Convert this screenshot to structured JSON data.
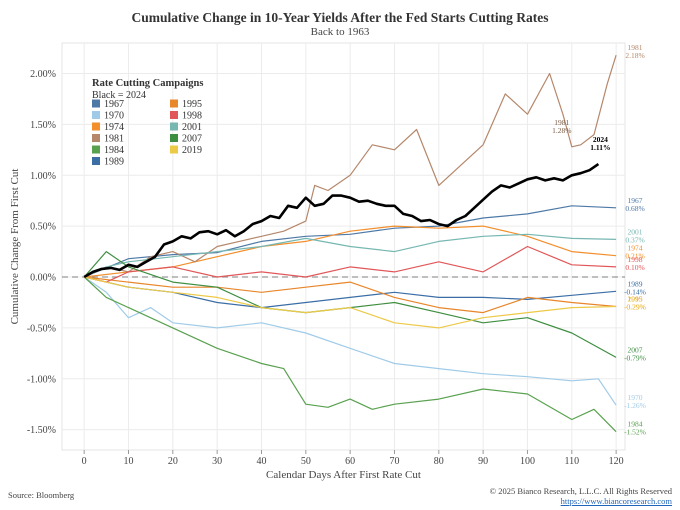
{
  "header": {
    "title": "Cumulative Change in 10-Year Yields After the Fed Starts Cutting Rates",
    "subtitle": "Back to 1963"
  },
  "footer": {
    "source": "Source: Bloomberg",
    "copyright": "© 2025 Bianco Research, L.L.C. All Rights Reserved",
    "url": "https://www.biancoresearch.com"
  },
  "chart_data": {
    "type": "line",
    "xlabel": "Calendar Days After First Rate Cut",
    "ylabel": "Cumulative Change From First Cut",
    "xlim": [
      -5,
      122
    ],
    "ylim": [
      -1.7,
      2.3
    ],
    "xticks": [
      0,
      10,
      20,
      30,
      40,
      50,
      60,
      70,
      80,
      90,
      100,
      110,
      120
    ],
    "yticks": [
      -1.5,
      -1.0,
      -0.5,
      0.0,
      0.5,
      1.0,
      1.5,
      2.0
    ],
    "ytick_labels": [
      "-1.50%",
      "-1.00%",
      "-0.50%",
      "0.00%",
      "0.50%",
      "1.00%",
      "1.50%",
      "2.00%"
    ],
    "grid": true,
    "zero_line": "dashed",
    "legend": {
      "title": "Rate Cutting Campaigns",
      "subtitle": "Black = 2024",
      "placement": "top-left",
      "entries": [
        "1967",
        "1995",
        "1970",
        "1998",
        "1974",
        "2001",
        "1981",
        "2007",
        "1984",
        "2019",
        "1989"
      ]
    },
    "annotations": [
      {
        "label": "1981",
        "value": "1.28%",
        "x": 110,
        "y": 1.28
      },
      {
        "label": "2024",
        "value": "1.11%",
        "x": 116,
        "y": 1.11
      }
    ],
    "series": [
      {
        "name": "1967",
        "color": "#4e79a7",
        "end_label": "0.68%",
        "width": 1.2,
        "points": [
          [
            0,
            0
          ],
          [
            10,
            0.18
          ],
          [
            20,
            0.22
          ],
          [
            30,
            0.24
          ],
          [
            40,
            0.35
          ],
          [
            50,
            0.4
          ],
          [
            60,
            0.42
          ],
          [
            70,
            0.48
          ],
          [
            80,
            0.5
          ],
          [
            90,
            0.58
          ],
          [
            100,
            0.62
          ],
          [
            110,
            0.7
          ],
          [
            120,
            0.68
          ]
        ]
      },
      {
        "name": "1970",
        "color": "#a0cbe8",
        "end_label": "-1.26%",
        "width": 1.2,
        "points": [
          [
            0,
            0
          ],
          [
            5,
            -0.15
          ],
          [
            10,
            -0.4
          ],
          [
            15,
            -0.3
          ],
          [
            20,
            -0.45
          ],
          [
            30,
            -0.5
          ],
          [
            40,
            -0.45
          ],
          [
            50,
            -0.55
          ],
          [
            60,
            -0.7
          ],
          [
            70,
            -0.85
          ],
          [
            80,
            -0.9
          ],
          [
            90,
            -0.95
          ],
          [
            100,
            -0.98
          ],
          [
            110,
            -1.02
          ],
          [
            116,
            -1.0
          ],
          [
            120,
            -1.26
          ]
        ]
      },
      {
        "name": "1974",
        "color": "#f28e2b",
        "end_label": "0.21%",
        "width": 1.2,
        "points": [
          [
            0,
            0
          ],
          [
            10,
            0.05
          ],
          [
            20,
            0.1
          ],
          [
            30,
            0.2
          ],
          [
            40,
            0.3
          ],
          [
            50,
            0.35
          ],
          [
            60,
            0.45
          ],
          [
            70,
            0.5
          ],
          [
            80,
            0.48
          ],
          [
            90,
            0.5
          ],
          [
            100,
            0.4
          ],
          [
            110,
            0.25
          ],
          [
            120,
            0.21
          ]
        ]
      },
      {
        "name": "1981",
        "color": "#b5876b",
        "end_label": "2.18%",
        "width": 1.2,
        "points": [
          [
            0,
            0
          ],
          [
            5,
            0.1
          ],
          [
            10,
            0.05
          ],
          [
            15,
            0.2
          ],
          [
            20,
            0.25
          ],
          [
            25,
            0.15
          ],
          [
            30,
            0.3
          ],
          [
            35,
            0.35
          ],
          [
            40,
            0.4
          ],
          [
            45,
            0.45
          ],
          [
            50,
            0.55
          ],
          [
            52,
            0.9
          ],
          [
            55,
            0.85
          ],
          [
            60,
            1.0
          ],
          [
            65,
            1.3
          ],
          [
            70,
            1.25
          ],
          [
            75,
            1.45
          ],
          [
            80,
            0.9
          ],
          [
            85,
            1.1
          ],
          [
            90,
            1.3
          ],
          [
            95,
            1.8
          ],
          [
            100,
            1.6
          ],
          [
            105,
            2.0
          ],
          [
            108,
            1.6
          ],
          [
            110,
            1.28
          ],
          [
            112,
            1.3
          ],
          [
            115,
            1.4
          ],
          [
            118,
            1.9
          ],
          [
            120,
            2.18
          ]
        ]
      },
      {
        "name": "1984",
        "color": "#59a14f",
        "end_label": "-1.52%",
        "width": 1.2,
        "points": [
          [
            0,
            0
          ],
          [
            5,
            -0.2
          ],
          [
            10,
            -0.3
          ],
          [
            20,
            -0.5
          ],
          [
            30,
            -0.7
          ],
          [
            40,
            -0.85
          ],
          [
            45,
            -0.9
          ],
          [
            50,
            -1.25
          ],
          [
            55,
            -1.28
          ],
          [
            60,
            -1.2
          ],
          [
            65,
            -1.3
          ],
          [
            70,
            -1.25
          ],
          [
            80,
            -1.2
          ],
          [
            90,
            -1.1
          ],
          [
            100,
            -1.15
          ],
          [
            110,
            -1.4
          ],
          [
            115,
            -1.3
          ],
          [
            120,
            -1.52
          ]
        ]
      },
      {
        "name": "1989",
        "color": "#3b6ea5",
        "end_label": "-0.14%",
        "width": 1.2,
        "points": [
          [
            0,
            0
          ],
          [
            5,
            -0.05
          ],
          [
            10,
            -0.1
          ],
          [
            20,
            -0.15
          ],
          [
            30,
            -0.25
          ],
          [
            40,
            -0.3
          ],
          [
            50,
            -0.25
          ],
          [
            60,
            -0.2
          ],
          [
            70,
            -0.15
          ],
          [
            80,
            -0.2
          ],
          [
            90,
            -0.2
          ],
          [
            100,
            -0.22
          ],
          [
            110,
            -0.18
          ],
          [
            120,
            -0.14
          ]
        ]
      },
      {
        "name": "1995",
        "color": "#e8862a",
        "end_label": "-0.29%",
        "width": 1.2,
        "points": [
          [
            0,
            0
          ],
          [
            10,
            -0.05
          ],
          [
            20,
            -0.1
          ],
          [
            30,
            -0.1
          ],
          [
            40,
            -0.15
          ],
          [
            50,
            -0.1
          ],
          [
            60,
            -0.05
          ],
          [
            70,
            -0.2
          ],
          [
            80,
            -0.3
          ],
          [
            90,
            -0.35
          ],
          [
            100,
            -0.2
          ],
          [
            110,
            -0.25
          ],
          [
            120,
            -0.29
          ]
        ]
      },
      {
        "name": "1998",
        "color": "#e15759",
        "end_label": "0.10%",
        "width": 1.2,
        "points": [
          [
            0,
            0
          ],
          [
            5,
            -0.05
          ],
          [
            10,
            0.05
          ],
          [
            20,
            0.1
          ],
          [
            30,
            0.0
          ],
          [
            40,
            0.05
          ],
          [
            50,
            0.0
          ],
          [
            60,
            0.1
          ],
          [
            70,
            0.05
          ],
          [
            80,
            0.15
          ],
          [
            90,
            0.05
          ],
          [
            100,
            0.3
          ],
          [
            110,
            0.12
          ],
          [
            120,
            0.1
          ]
        ]
      },
      {
        "name": "2001",
        "color": "#76b7b2",
        "end_label": "0.37%",
        "width": 1.2,
        "points": [
          [
            0,
            0
          ],
          [
            5,
            0.1
          ],
          [
            10,
            0.15
          ],
          [
            20,
            0.2
          ],
          [
            30,
            0.25
          ],
          [
            40,
            0.3
          ],
          [
            50,
            0.38
          ],
          [
            60,
            0.3
          ],
          [
            70,
            0.25
          ],
          [
            80,
            0.35
          ],
          [
            90,
            0.4
          ],
          [
            100,
            0.42
          ],
          [
            110,
            0.38
          ],
          [
            120,
            0.37
          ]
        ]
      },
      {
        "name": "2007",
        "color": "#3e8e41",
        "end_label": "-0.79%",
        "width": 1.2,
        "points": [
          [
            0,
            0
          ],
          [
            5,
            0.25
          ],
          [
            10,
            0.1
          ],
          [
            20,
            -0.05
          ],
          [
            30,
            -0.1
          ],
          [
            40,
            -0.3
          ],
          [
            50,
            -0.35
          ],
          [
            60,
            -0.3
          ],
          [
            70,
            -0.25
          ],
          [
            80,
            -0.35
          ],
          [
            90,
            -0.45
          ],
          [
            100,
            -0.4
          ],
          [
            110,
            -0.55
          ],
          [
            120,
            -0.79
          ]
        ]
      },
      {
        "name": "2019",
        "color": "#edc948",
        "end_label": "-0.29%",
        "width": 1.2,
        "points": [
          [
            0,
            0
          ],
          [
            10,
            -0.1
          ],
          [
            20,
            -0.15
          ],
          [
            30,
            -0.2
          ],
          [
            40,
            -0.3
          ],
          [
            50,
            -0.35
          ],
          [
            60,
            -0.3
          ],
          [
            70,
            -0.45
          ],
          [
            80,
            -0.5
          ],
          [
            90,
            -0.4
          ],
          [
            100,
            -0.35
          ],
          [
            110,
            -0.3
          ],
          [
            120,
            -0.29
          ]
        ]
      },
      {
        "name": "2024",
        "color": "#000000",
        "end_label": "",
        "width": 2.6,
        "points": [
          [
            0,
            0
          ],
          [
            2,
            0.05
          ],
          [
            4,
            0.08
          ],
          [
            6,
            0.09
          ],
          [
            8,
            0.07
          ],
          [
            10,
            0.12
          ],
          [
            12,
            0.1
          ],
          [
            14,
            0.15
          ],
          [
            16,
            0.2
          ],
          [
            18,
            0.32
          ],
          [
            20,
            0.35
          ],
          [
            22,
            0.4
          ],
          [
            24,
            0.38
          ],
          [
            26,
            0.44
          ],
          [
            28,
            0.45
          ],
          [
            30,
            0.42
          ],
          [
            32,
            0.46
          ],
          [
            34,
            0.4
          ],
          [
            36,
            0.45
          ],
          [
            38,
            0.52
          ],
          [
            40,
            0.55
          ],
          [
            42,
            0.6
          ],
          [
            44,
            0.58
          ],
          [
            46,
            0.7
          ],
          [
            48,
            0.68
          ],
          [
            50,
            0.78
          ],
          [
            52,
            0.7
          ],
          [
            54,
            0.72
          ],
          [
            56,
            0.8
          ],
          [
            58,
            0.8
          ],
          [
            60,
            0.78
          ],
          [
            62,
            0.74
          ],
          [
            64,
            0.75
          ],
          [
            66,
            0.72
          ],
          [
            68,
            0.7
          ],
          [
            70,
            0.7
          ],
          [
            72,
            0.62
          ],
          [
            74,
            0.6
          ],
          [
            76,
            0.55
          ],
          [
            78,
            0.56
          ],
          [
            80,
            0.52
          ],
          [
            82,
            0.5
          ],
          [
            84,
            0.56
          ],
          [
            86,
            0.6
          ],
          [
            88,
            0.68
          ],
          [
            90,
            0.76
          ],
          [
            92,
            0.84
          ],
          [
            94,
            0.9
          ],
          [
            96,
            0.88
          ],
          [
            98,
            0.92
          ],
          [
            100,
            0.96
          ],
          [
            102,
            0.98
          ],
          [
            104,
            0.95
          ],
          [
            106,
            0.97
          ],
          [
            108,
            0.95
          ],
          [
            110,
            1.0
          ],
          [
            112,
            1.02
          ],
          [
            114,
            1.05
          ],
          [
            116,
            1.11
          ]
        ]
      }
    ]
  }
}
